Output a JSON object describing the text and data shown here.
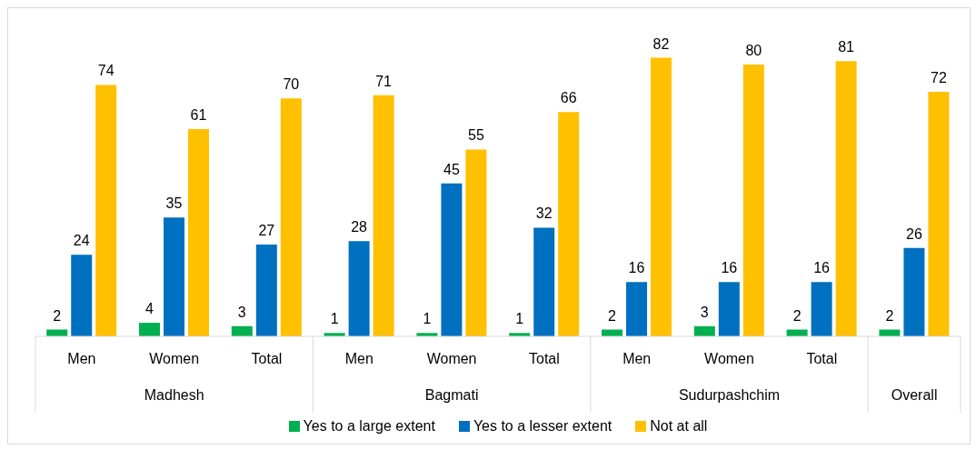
{
  "chart_data": {
    "type": "bar",
    "categories": [
      "Men",
      "Women",
      "Total",
      "Men",
      "Women",
      "Total",
      "Men",
      "Women",
      "Total",
      null
    ],
    "annotations": [
      "Madhesh",
      "Bagmati",
      "Sudurpashchim",
      "Overall"
    ],
    "series": [
      {
        "name": "Yes to a large extent",
        "color": "#00b050",
        "values": [
          2,
          4,
          3,
          1,
          1,
          1,
          2,
          3,
          2,
          2
        ]
      },
      {
        "name": "Yes to a lesser extent",
        "color": "#0070c0",
        "values": [
          24,
          35,
          27,
          28,
          45,
          32,
          16,
          16,
          16,
          26
        ]
      },
      {
        "name": "Not at all",
        "color": "#ffc000",
        "values": [
          74,
          61,
          70,
          71,
          55,
          66,
          82,
          80,
          81,
          72
        ]
      }
    ],
    "data_labels": true,
    "legend": "bottom",
    "grid": false
  }
}
